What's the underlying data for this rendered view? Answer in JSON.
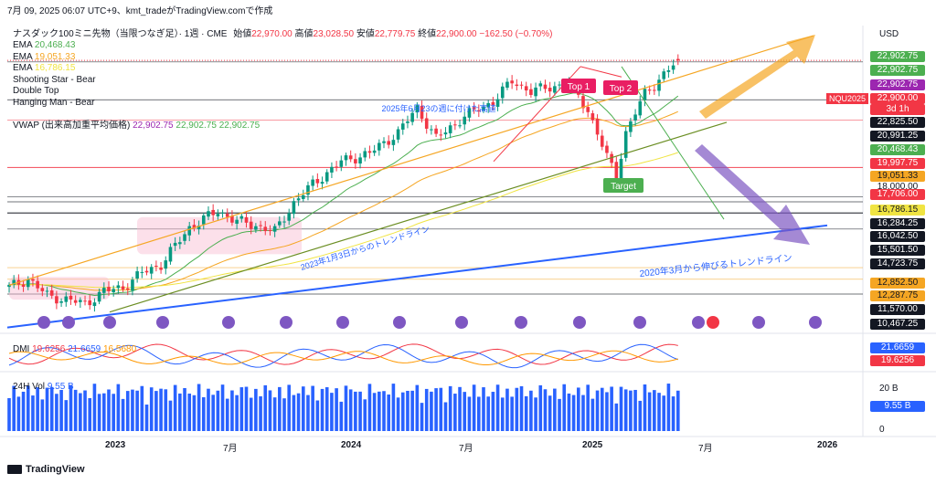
{
  "header": {
    "timestamp": "7月 09, 2025 06:07 UTC+9、kmt_tradeがTradingView.comで作成",
    "symbol": "ナスダック100ミニ先物（当限つなぎ足）· 1週 · CME",
    "open_label": "始値",
    "open": "22,970.00",
    "high_label": "高値",
    "high": "23,028.50",
    "low_label": "安値",
    "low": "22,779.75",
    "close_label": "終値",
    "close": "22,900.00",
    "change": "−162.50 (−0.70%)"
  },
  "legend": [
    {
      "name": "EMA",
      "value": "20,468.43",
      "color": "#4caf50"
    },
    {
      "name": "EMA",
      "value": "19,051.33",
      "color": "#f5a623"
    },
    {
      "name": "EMA",
      "value": "16,786.15",
      "color": "#f0e442"
    },
    {
      "name": "Shooting Star - Bear",
      "value": "",
      "color": ""
    },
    {
      "name": "Double Top",
      "value": "",
      "color": ""
    },
    {
      "name": "Hanging Man - Bear",
      "value": "",
      "color": ""
    }
  ],
  "vwap": {
    "name": "VWAP (出来高加重平均価格)",
    "v1": "22,902.75",
    "v2": "22,902.75",
    "v3": "22,902.75"
  },
  "currency": "USD",
  "price_tags": [
    {
      "label": "22,902.75",
      "bg": "#4caf50",
      "fg": "#ffffff",
      "price": 22902.75,
      "y": 62
    },
    {
      "label": "22,902.75",
      "bg": "#4caf50",
      "fg": "#ffffff",
      "price": 22902.75,
      "y": 77
    },
    {
      "label": "22,902.75",
      "bg": "#9c27b0",
      "fg": "#ffffff",
      "price": 22902.75,
      "y": 93
    },
    {
      "label": "22,900.00",
      "bg": "#f23645",
      "fg": "#ffffff",
      "price": 22900,
      "y": 108
    },
    {
      "label": "3d 1h",
      "bg": "#f23645",
      "fg": "#ffffff",
      "price": 0,
      "y": 120
    },
    {
      "label": "22,825.50",
      "bg": "#131722",
      "fg": "#ffffff",
      "price": 22825.5,
      "y": 134
    },
    {
      "label": "20,991.25",
      "bg": "#131722",
      "fg": "#ffffff",
      "price": 20991.25,
      "y": 149
    },
    {
      "label": "20,468.43",
      "bg": "#4caf50",
      "fg": "#ffffff",
      "price": 20468.43,
      "y": 164
    },
    {
      "label": "19,997.75",
      "bg": "#f23645",
      "fg": "#ffffff",
      "price": 19997.75,
      "y": 179
    },
    {
      "label": "19,051.33",
      "bg": "#f5a623",
      "fg": "#131722",
      "price": 19051.33,
      "y": 193
    },
    {
      "label": "18,000.00",
      "bg": "#ffffff",
      "fg": "#131722",
      "price": 18000,
      "y": 205
    },
    {
      "label": "17,706.00",
      "bg": "#f23645",
      "fg": "#ffffff",
      "price": 17706,
      "y": 213
    },
    {
      "label": "16,786.15",
      "bg": "#f0e442",
      "fg": "#131722",
      "price": 16786.15,
      "y": 230
    },
    {
      "label": "16,284.25",
      "bg": "#131722",
      "fg": "#ffffff",
      "price": 16284.25,
      "y": 245
    },
    {
      "label": "16,042.50",
      "bg": "#131722",
      "fg": "#ffffff",
      "price": 16042.5,
      "y": 259
    },
    {
      "label": "15,501.50",
      "bg": "#131722",
      "fg": "#ffffff",
      "price": 15501.5,
      "y": 274
    },
    {
      "label": "14,723.75",
      "bg": "#131722",
      "fg": "#ffffff",
      "price": 14723.75,
      "y": 289
    },
    {
      "label": "12,852.50",
      "bg": "#f5a623",
      "fg": "#131722",
      "price": 12852.5,
      "y": 310
    },
    {
      "label": "12,287.75",
      "bg": "#f5a623",
      "fg": "#131722",
      "price": 12287.75,
      "y": 324
    },
    {
      "label": "11,570.00",
      "bg": "#131722",
      "fg": "#ffffff",
      "price": 11570,
      "y": 339
    },
    {
      "label": "10,467.25",
      "bg": "#131722",
      "fg": "#ffffff",
      "price": 10467.25,
      "y": 355
    }
  ],
  "symbol_tag": "NQU2025",
  "annotations": {
    "top1": "Top 1",
    "top2": "Top 2",
    "target": "Target",
    "high_note": "2025年6月23の週に付けた高値",
    "trend_2023": "2023年1月3日からのトレンドライン",
    "trend_2020": "2020年3月から伸びるトレンドライン"
  },
  "dmi": {
    "name": "DMI",
    "v1": "19.6256",
    "v2": "21.6659",
    "v3": "16.5680",
    "c1": "#f23645",
    "c2": "#2962ff",
    "c3": "#ff9800",
    "tags": [
      {
        "label": "21.6659",
        "bg": "#2962ff",
        "y": 381
      },
      {
        "label": "19.6256",
        "bg": "#f23645",
        "y": 395
      }
    ]
  },
  "volume": {
    "name": "24H Vol",
    "value": "9.55 B",
    "axis_top": "20 B",
    "axis_zero": "0",
    "tag": "9.55 B"
  },
  "x_axis": [
    {
      "label": "2023",
      "x": 127,
      "bold": true
    },
    {
      "label": "7月",
      "x": 256,
      "bold": false
    },
    {
      "label": "2024",
      "x": 385,
      "bold": true
    },
    {
      "label": "7月",
      "x": 514,
      "bold": false
    },
    {
      "label": "2025",
      "x": 649,
      "bold": true
    },
    {
      "label": "7月",
      "x": 776,
      "bold": false
    },
    {
      "label": "2026",
      "x": 906,
      "bold": true
    }
  ],
  "footer": "TradingView",
  "chart_data": {
    "type": "candlestick",
    "timeframe": "1W",
    "weeks": 152,
    "ohlc_close_anchors": [
      {
        "week": 0,
        "close": 11900
      },
      {
        "week": 4,
        "close": 12300
      },
      {
        "week": 8,
        "close": 11500
      },
      {
        "week": 12,
        "close": 11300
      },
      {
        "week": 16,
        "close": 11100
      },
      {
        "week": 20,
        "close": 11700
      },
      {
        "week": 24,
        "close": 11900
      },
      {
        "week": 28,
        "close": 12600
      },
      {
        "week": 32,
        "close": 13000
      },
      {
        "week": 38,
        "close": 14800
      },
      {
        "week": 44,
        "close": 15600
      },
      {
        "week": 48,
        "close": 15100
      },
      {
        "week": 52,
        "close": 14900
      },
      {
        "week": 56,
        "close": 14600
      },
      {
        "week": 60,
        "close": 16000
      },
      {
        "week": 64,
        "close": 16900
      },
      {
        "week": 70,
        "close": 18000
      },
      {
        "week": 76,
        "close": 18400
      },
      {
        "week": 82,
        "close": 19400
      },
      {
        "week": 86,
        "close": 20600
      },
      {
        "week": 90,
        "close": 19100
      },
      {
        "week": 96,
        "close": 20200
      },
      {
        "week": 102,
        "close": 20900
      },
      {
        "week": 106,
        "close": 21900
      },
      {
        "week": 110,
        "close": 21400
      },
      {
        "week": 114,
        "close": 21600
      },
      {
        "week": 118,
        "close": 21800
      },
      {
        "week": 122,
        "close": 20500
      },
      {
        "week": 126,
        "close": 18200
      },
      {
        "week": 128,
        "close": 17300
      },
      {
        "week": 130,
        "close": 19400
      },
      {
        "week": 134,
        "close": 21300
      },
      {
        "week": 138,
        "close": 22200
      },
      {
        "week": 141,
        "close": 22900
      }
    ],
    "last_candle": {
      "open": 22970,
      "high": 23028.5,
      "low": 22779.75,
      "close": 22900
    },
    "lows": [
      {
        "week": 15,
        "low": 10467.25
      },
      {
        "week": 128,
        "low": 16462
      }
    ],
    "ema": [
      20468.43,
      19051.33,
      16786.15
    ],
    "horizontal_levels": [
      22825.5,
      20991.25,
      19997.75,
      17706,
      16284.25,
      16042.5,
      15501.5,
      14723.75,
      12852.5,
      12287.75,
      11570
    ],
    "ylim": [
      9800,
      24500
    ],
    "xlabel": "",
    "ylabel": ""
  }
}
